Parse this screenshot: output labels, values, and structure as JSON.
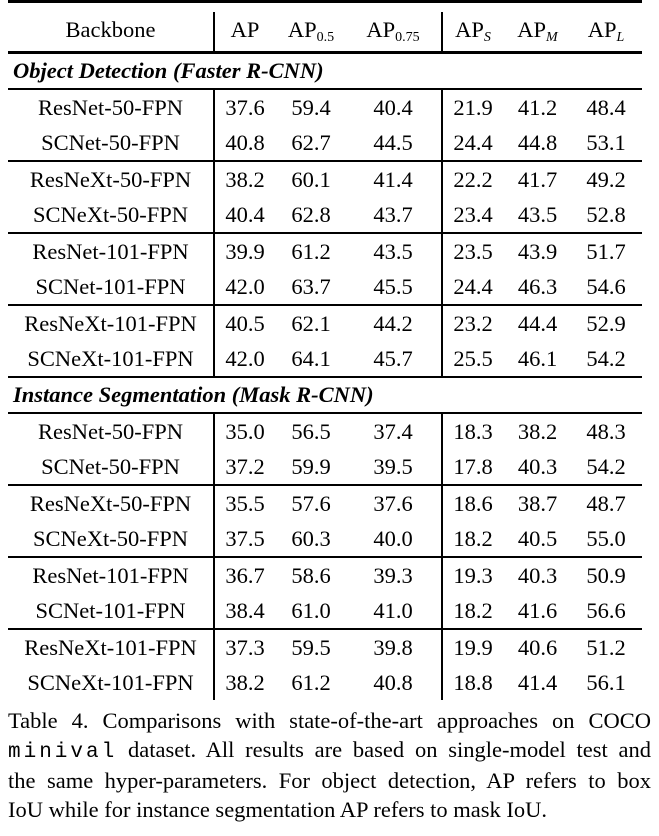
{
  "table": {
    "header": {
      "backbone_label": "Backbone",
      "metric_cols": [
        {
          "main": "AP",
          "sub": ""
        },
        {
          "main": "AP",
          "sub": "0.5"
        },
        {
          "main": "AP",
          "sub": "0.75"
        },
        {
          "main": "AP",
          "sub": "S"
        },
        {
          "main": "AP",
          "sub": "M"
        },
        {
          "main": "AP",
          "sub": "L"
        }
      ]
    },
    "sections": [
      {
        "title": "Object Detection (Faster R-CNN)",
        "row_groups": [
          [
            {
              "backbone": "ResNet-50-FPN",
              "values": [
                "37.6",
                "59.4",
                "40.4",
                "21.9",
                "41.2",
                "48.4"
              ]
            },
            {
              "backbone": "SCNet-50-FPN",
              "values": [
                "40.8",
                "62.7",
                "44.5",
                "24.4",
                "44.8",
                "53.1"
              ]
            }
          ],
          [
            {
              "backbone": "ResNeXt-50-FPN",
              "values": [
                "38.2",
                "60.1",
                "41.4",
                "22.2",
                "41.7",
                "49.2"
              ]
            },
            {
              "backbone": "SCNeXt-50-FPN",
              "values": [
                "40.4",
                "62.8",
                "43.7",
                "23.4",
                "43.5",
                "52.8"
              ]
            }
          ],
          [
            {
              "backbone": "ResNet-101-FPN",
              "values": [
                "39.9",
                "61.2",
                "43.5",
                "23.5",
                "43.9",
                "51.7"
              ]
            },
            {
              "backbone": "SCNet-101-FPN",
              "values": [
                "42.0",
                "63.7",
                "45.5",
                "24.4",
                "46.3",
                "54.6"
              ]
            }
          ],
          [
            {
              "backbone": "ResNeXt-101-FPN",
              "values": [
                "40.5",
                "62.1",
                "44.2",
                "23.2",
                "44.4",
                "52.9"
              ]
            },
            {
              "backbone": "SCNeXt-101-FPN",
              "values": [
                "42.0",
                "64.1",
                "45.7",
                "25.5",
                "46.1",
                "54.2"
              ]
            }
          ]
        ]
      },
      {
        "title": "Instance Segmentation (Mask R-CNN)",
        "row_groups": [
          [
            {
              "backbone": "ResNet-50-FPN",
              "values": [
                "35.0",
                "56.5",
                "37.4",
                "18.3",
                "38.2",
                "48.3"
              ]
            },
            {
              "backbone": "SCNet-50-FPN",
              "values": [
                "37.2",
                "59.9",
                "39.5",
                "17.8",
                "40.3",
                "54.2"
              ]
            }
          ],
          [
            {
              "backbone": "ResNeXt-50-FPN",
              "values": [
                "35.5",
                "57.6",
                "37.6",
                "18.6",
                "38.7",
                "48.7"
              ]
            },
            {
              "backbone": "SCNeXt-50-FPN",
              "values": [
                "37.5",
                "60.3",
                "40.0",
                "18.2",
                "40.5",
                "55.0"
              ]
            }
          ],
          [
            {
              "backbone": "ResNet-101-FPN",
              "values": [
                "36.7",
                "58.6",
                "39.3",
                "19.3",
                "40.3",
                "50.9"
              ]
            },
            {
              "backbone": "SCNet-101-FPN",
              "values": [
                "38.4",
                "61.0",
                "41.0",
                "18.2",
                "41.6",
                "56.6"
              ]
            }
          ],
          [
            {
              "backbone": "ResNeXt-101-FPN",
              "values": [
                "37.3",
                "59.5",
                "39.8",
                "19.9",
                "40.6",
                "51.2"
              ]
            },
            {
              "backbone": "SCNeXt-101-FPN",
              "values": [
                "38.2",
                "61.2",
                "40.8",
                "18.8",
                "41.4",
                "56.1"
              ]
            }
          ]
        ]
      }
    ]
  },
  "caption": {
    "line1": "Table 4. Comparisons with state-of-the-art approaches on COCO",
    "line2_code": "minival",
    "line2_rest": " dataset. All results are based on single-model test and",
    "line3": "the same hyper-parameters. For object detection, AP refers to box",
    "line4": "IoU while for instance segmentation AP refers to mask IoU."
  }
}
